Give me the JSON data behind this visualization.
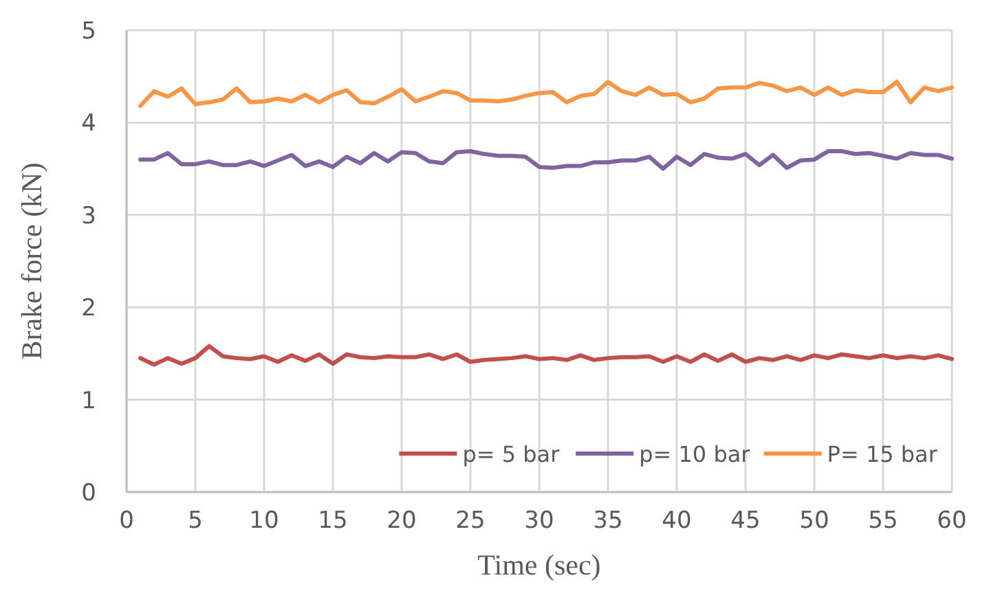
{
  "chart_data": {
    "type": "line",
    "xlabel": "Time (sec)",
    "ylabel": "Brake force (kN)",
    "x": [
      1,
      2,
      3,
      4,
      5,
      6,
      7,
      8,
      9,
      10,
      11,
      12,
      13,
      14,
      15,
      16,
      17,
      18,
      19,
      20,
      21,
      22,
      23,
      24,
      25,
      26,
      27,
      28,
      29,
      30,
      31,
      32,
      33,
      34,
      35,
      36,
      37,
      38,
      39,
      40,
      41,
      42,
      43,
      44,
      45,
      46,
      47,
      48,
      49,
      50,
      51,
      52,
      53,
      54,
      55,
      56,
      57,
      58,
      59,
      60
    ],
    "xlim": [
      0,
      60
    ],
    "xticks": [
      0,
      5,
      10,
      15,
      20,
      25,
      30,
      35,
      40,
      45,
      50,
      55,
      60
    ],
    "ylim": [
      0,
      5
    ],
    "yticks": [
      0,
      1,
      2,
      3,
      4,
      5
    ],
    "grid": true,
    "legend": "bottom right",
    "line_style": "solid",
    "marker": "none",
    "series": [
      {
        "name": "p= 5 bar",
        "color": "#c0504d",
        "values": [
          1.45,
          1.38,
          1.45,
          1.39,
          1.45,
          1.58,
          1.47,
          1.45,
          1.44,
          1.47,
          1.41,
          1.48,
          1.42,
          1.49,
          1.39,
          1.49,
          1.46,
          1.45,
          1.47,
          1.46,
          1.46,
          1.49,
          1.44,
          1.49,
          1.41,
          1.43,
          1.44,
          1.45,
          1.47,
          1.44,
          1.45,
          1.43,
          1.48,
          1.43,
          1.45,
          1.46,
          1.46,
          1.47,
          1.41,
          1.47,
          1.41,
          1.49,
          1.42,
          1.49,
          1.41,
          1.45,
          1.43,
          1.47,
          1.43,
          1.48,
          1.45,
          1.49,
          1.47,
          1.45,
          1.48,
          1.45,
          1.47,
          1.45,
          1.48,
          1.44
        ]
      },
      {
        "name": "p= 10 bar",
        "color": "#8064a2",
        "values": [
          3.6,
          3.6,
          3.67,
          3.55,
          3.55,
          3.58,
          3.54,
          3.54,
          3.58,
          3.53,
          3.59,
          3.65,
          3.53,
          3.58,
          3.52,
          3.63,
          3.56,
          3.67,
          3.58,
          3.68,
          3.67,
          3.58,
          3.56,
          3.68,
          3.69,
          3.66,
          3.64,
          3.64,
          3.63,
          3.52,
          3.51,
          3.53,
          3.53,
          3.57,
          3.57,
          3.59,
          3.59,
          3.63,
          3.5,
          3.63,
          3.54,
          3.66,
          3.62,
          3.61,
          3.66,
          3.54,
          3.65,
          3.51,
          3.59,
          3.6,
          3.69,
          3.69,
          3.66,
          3.67,
          3.64,
          3.61,
          3.67,
          3.65,
          3.65,
          3.61
        ]
      },
      {
        "name": "P= 15 bar",
        "color": "#f79646",
        "values": [
          4.18,
          4.34,
          4.28,
          4.37,
          4.2,
          4.22,
          4.25,
          4.37,
          4.22,
          4.23,
          4.26,
          4.23,
          4.3,
          4.22,
          4.3,
          4.35,
          4.22,
          4.21,
          4.28,
          4.36,
          4.23,
          4.28,
          4.34,
          4.32,
          4.24,
          4.24,
          4.23,
          4.25,
          4.29,
          4.32,
          4.33,
          4.22,
          4.29,
          4.31,
          4.44,
          4.34,
          4.3,
          4.38,
          4.3,
          4.31,
          4.22,
          4.26,
          4.37,
          4.38,
          4.38,
          4.43,
          4.4,
          4.34,
          4.38,
          4.3,
          4.38,
          4.3,
          4.35,
          4.33,
          4.33,
          4.44,
          4.22,
          4.38,
          4.34,
          4.38
        ]
      }
    ]
  }
}
